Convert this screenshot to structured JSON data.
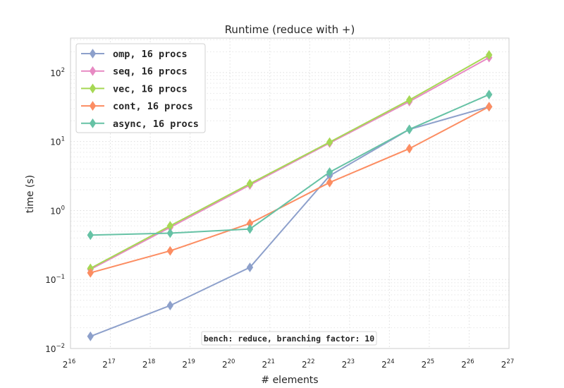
{
  "chart_data": {
    "type": "line",
    "title": "Runtime (reduce with +)",
    "xlabel": "# elements",
    "ylabel": "time (s)",
    "xscale": "log2",
    "yscale": "log10",
    "xlim_exp": [
      16,
      27
    ],
    "ylim_exp": [
      -2,
      2.5
    ],
    "x_ticks": [
      {
        "base": "2",
        "exp": "16"
      },
      {
        "base": "2",
        "exp": "17"
      },
      {
        "base": "2",
        "exp": "18"
      },
      {
        "base": "2",
        "exp": "19"
      },
      {
        "base": "2",
        "exp": "20"
      },
      {
        "base": "2",
        "exp": "21"
      },
      {
        "base": "2",
        "exp": "22"
      },
      {
        "base": "2",
        "exp": "23"
      },
      {
        "base": "2",
        "exp": "24"
      },
      {
        "base": "2",
        "exp": "25"
      },
      {
        "base": "2",
        "exp": "26"
      },
      {
        "base": "2",
        "exp": "27"
      }
    ],
    "y_ticks": [
      {
        "base": "10",
        "exp": "−2"
      },
      {
        "base": "10",
        "exp": "−1"
      },
      {
        "base": "10",
        "exp": "0"
      },
      {
        "base": "10",
        "exp": "1"
      },
      {
        "base": "10",
        "exp": "2"
      }
    ],
    "x_exponents": [
      16.5,
      18.5,
      20.5,
      22.5,
      24.5,
      26.5
    ],
    "series": [
      {
        "name": "omp, 16 procs",
        "color": "#8da0cb",
        "values": [
          0.015,
          0.042,
          0.15,
          3.2,
          15.0,
          32.0
        ]
      },
      {
        "name": "seq, 16 procs",
        "color": "#e78ac3",
        "values": [
          0.14,
          0.57,
          2.35,
          9.5,
          38.0,
          165.0
        ]
      },
      {
        "name": "vec, 16 procs",
        "color": "#a6d854",
        "values": [
          0.145,
          0.6,
          2.45,
          9.8,
          40.0,
          180.0
        ]
      },
      {
        "name": "cont, 16 procs",
        "color": "#fc8d62",
        "values": [
          0.125,
          0.26,
          0.65,
          2.55,
          7.9,
          32.0
        ]
      },
      {
        "name": "async, 16 procs",
        "color": "#66c2a5",
        "values": [
          0.44,
          0.47,
          0.54,
          3.6,
          15.0,
          48.0
        ]
      }
    ],
    "legend_position": "upper-left",
    "grid": true,
    "annotation": "bench: reduce, branching factor: 10"
  }
}
